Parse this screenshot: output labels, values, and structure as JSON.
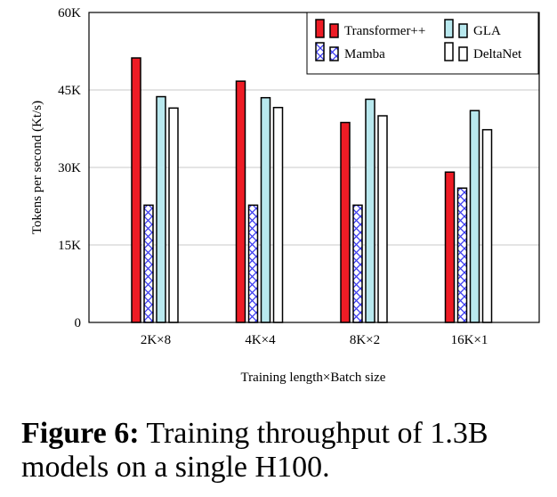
{
  "chart_data": {
    "type": "bar",
    "title": "",
    "xlabel": "Training length×Batch size",
    "ylabel": "Tokens per second (Kt/s)",
    "ylim": [
      0,
      60000
    ],
    "yticks": [
      0,
      15000,
      30000,
      45000,
      60000
    ],
    "ytick_labels": [
      "0",
      "15K",
      "30K",
      "45K",
      "60K"
    ],
    "grid": "horizontal",
    "legend_position": "top-right",
    "categories": [
      "2K×8",
      "4K×4",
      "8K×2",
      "16K×1"
    ],
    "series": [
      {
        "name": "Transformer++",
        "color": "#ee1c25",
        "pattern": "solid",
        "values": [
          51200,
          46700,
          38700,
          29100
        ]
      },
      {
        "name": "Mamba",
        "color": "#3b3bf0",
        "pattern": "crosshatch",
        "values": [
          22700,
          22700,
          22700,
          26000
        ]
      },
      {
        "name": "GLA",
        "color": "#b8e8ee",
        "pattern": "solid",
        "values": [
          43700,
          43500,
          43200,
          41000
        ]
      },
      {
        "name": "DeltaNet",
        "color": "#ffffff",
        "pattern": "solid",
        "values": [
          41500,
          41600,
          40000,
          37300
        ]
      }
    ]
  },
  "caption": {
    "label": "Figure 6:",
    "text": " Training throughput of 1.3B models on a single H100."
  }
}
